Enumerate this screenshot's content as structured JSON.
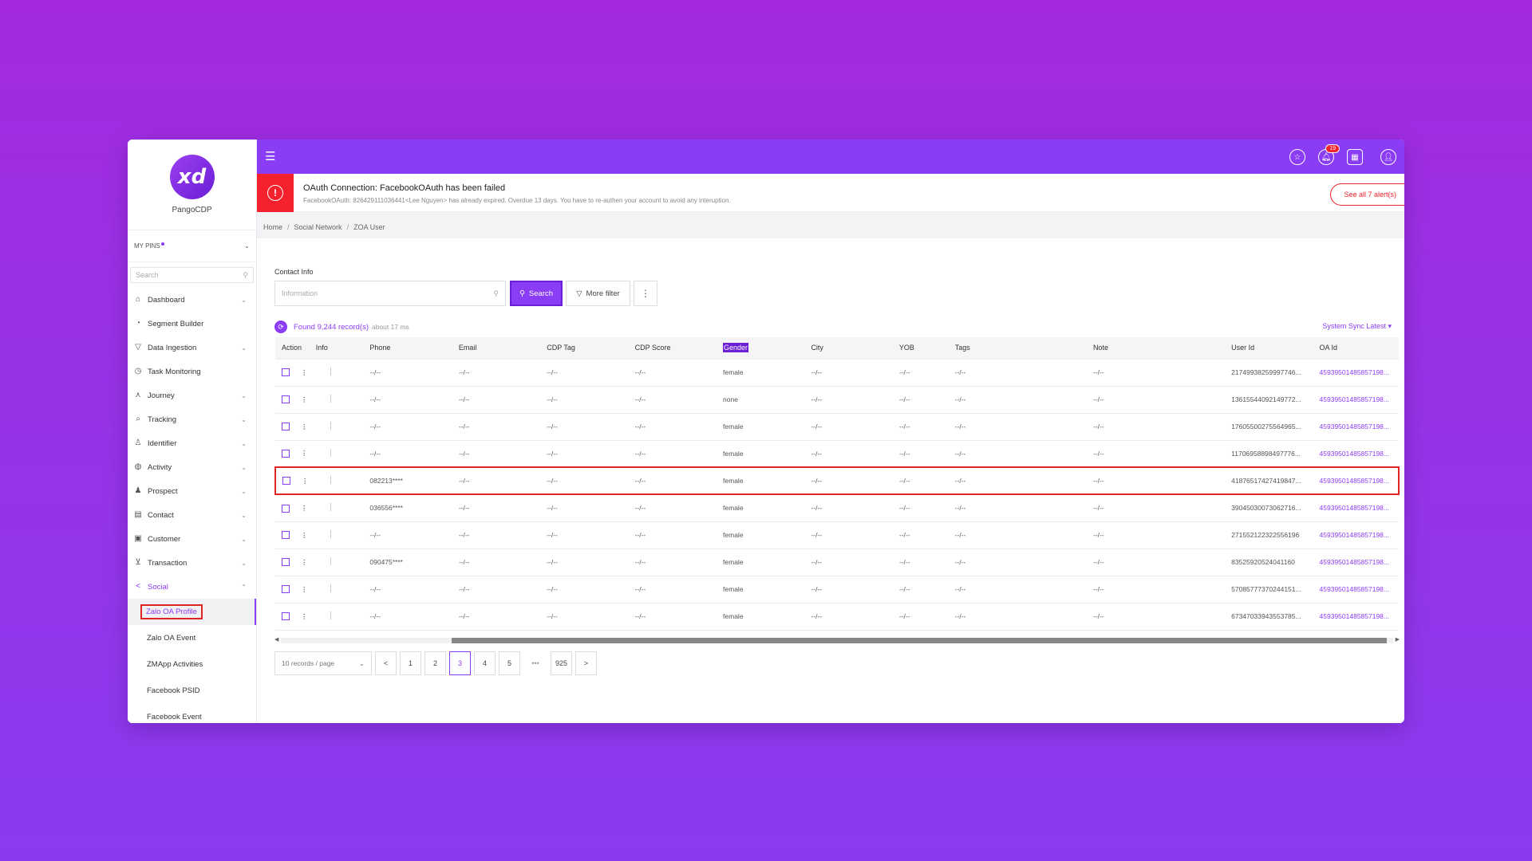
{
  "app": {
    "name": "PangoCDP"
  },
  "sidebar": {
    "pins_label": "MY PINS",
    "search_placeholder": "Search",
    "items": [
      {
        "label": "Dashboard",
        "icon": "home-icon",
        "chevron": "down"
      },
      {
        "label": "Segment Builder",
        "icon": "pie-chart-icon",
        "chevron": ""
      },
      {
        "label": "Data Ingestion",
        "icon": "filter-icon",
        "chevron": "down"
      },
      {
        "label": "Task Monitoring",
        "icon": "clock-icon",
        "chevron": ""
      },
      {
        "label": "Journey",
        "icon": "journey-icon",
        "chevron": "down"
      },
      {
        "label": "Tracking",
        "icon": "tracking-icon",
        "chevron": "down"
      },
      {
        "label": "Identifier",
        "icon": "user-icon",
        "chevron": "down"
      },
      {
        "label": "Activity",
        "icon": "globe-icon",
        "chevron": "down"
      },
      {
        "label": "Prospect",
        "icon": "users-icon",
        "chevron": "down"
      },
      {
        "label": "Contact",
        "icon": "contact-card-icon",
        "chevron": "down"
      },
      {
        "label": "Customer",
        "icon": "customer-icon",
        "chevron": "down"
      },
      {
        "label": "Transaction",
        "icon": "cart-icon",
        "chevron": "down"
      },
      {
        "label": "Social",
        "icon": "share-icon",
        "chevron": "up"
      }
    ],
    "sub_items": [
      {
        "label": "Zalo OA Profile"
      },
      {
        "label": "Zalo OA Event"
      },
      {
        "label": "ZMApp Activities"
      },
      {
        "label": "Facebook PSID"
      },
      {
        "label": "Facebook Event"
      }
    ]
  },
  "topbar": {
    "notification_count": "19"
  },
  "alert": {
    "title": "OAuth Connection: FacebookOAuth has been failed",
    "description": "FacebookOAuth: 826429111036441<Lee Nguyen> has already expired. Overdue 13 days. You have to re-authen your account to avoid any interuption.",
    "button": "See all 7 alert(s)"
  },
  "breadcrumb": [
    "Home",
    "Social Network",
    "ZOA User"
  ],
  "filter": {
    "label": "Contact Info",
    "placeholder": "Information",
    "search_label": "Search",
    "more_filter_label": "More filter"
  },
  "results": {
    "found": "Found 9,244 record(s)",
    "time": "about 17 ms",
    "sync": "System Sync Latest"
  },
  "table": {
    "columns": [
      "Action",
      "Info",
      "Phone",
      "Email",
      "CDP Tag",
      "CDP Score",
      "Gender",
      "City",
      "YOB",
      "Tags",
      "Note",
      "User Id",
      "OA Id"
    ],
    "rows": [
      {
        "phone": "--/--",
        "email": "--/--",
        "cdp_tag": "--/--",
        "cdp_score": "--/--",
        "gender": "female",
        "city": "--/--",
        "yob": "--/--",
        "tags": "--/--",
        "note": "--/--",
        "user_id": "21749938259997746...",
        "oa_id": "45939501485857198..."
      },
      {
        "phone": "--/--",
        "email": "--/--",
        "cdp_tag": "--/--",
        "cdp_score": "--/--",
        "gender": "none",
        "city": "--/--",
        "yob": "--/--",
        "tags": "--/--",
        "note": "--/--",
        "user_id": "13615544092149772...",
        "oa_id": "45939501485857198..."
      },
      {
        "phone": "--/--",
        "email": "--/--",
        "cdp_tag": "--/--",
        "cdp_score": "--/--",
        "gender": "female",
        "city": "--/--",
        "yob": "--/--",
        "tags": "--/--",
        "note": "--/--",
        "user_id": "17605500275564965...",
        "oa_id": "45939501485857198..."
      },
      {
        "phone": "--/--",
        "email": "--/--",
        "cdp_tag": "--/--",
        "cdp_score": "--/--",
        "gender": "female",
        "city": "--/--",
        "yob": "--/--",
        "tags": "--/--",
        "note": "--/--",
        "user_id": "11706958898497776...",
        "oa_id": "45939501485857198..."
      },
      {
        "phone": "082213****",
        "email": "--/--",
        "cdp_tag": "--/--",
        "cdp_score": "--/--",
        "gender": "female",
        "city": "--/--",
        "yob": "--/--",
        "tags": "--/--",
        "note": "--/--",
        "user_id": "41876517427419847...",
        "oa_id": "45939501485857198..."
      },
      {
        "phone": "036556****",
        "email": "--/--",
        "cdp_tag": "--/--",
        "cdp_score": "--/--",
        "gender": "female",
        "city": "--/--",
        "yob": "--/--",
        "tags": "--/--",
        "note": "--/--",
        "user_id": "39045030073062716...",
        "oa_id": "45939501485857198..."
      },
      {
        "phone": "--/--",
        "email": "--/--",
        "cdp_tag": "--/--",
        "cdp_score": "--/--",
        "gender": "female",
        "city": "--/--",
        "yob": "--/--",
        "tags": "--/--",
        "note": "--/--",
        "user_id": "271552122322556196",
        "oa_id": "45939501485857198..."
      },
      {
        "phone": "090475****",
        "email": "--/--",
        "cdp_tag": "--/--",
        "cdp_score": "--/--",
        "gender": "female",
        "city": "--/--",
        "yob": "--/--",
        "tags": "--/--",
        "note": "--/--",
        "user_id": "83525920524041160",
        "oa_id": "45939501485857198..."
      },
      {
        "phone": "--/--",
        "email": "--/--",
        "cdp_tag": "--/--",
        "cdp_score": "--/--",
        "gender": "female",
        "city": "--/--",
        "yob": "--/--",
        "tags": "--/--",
        "note": "--/--",
        "user_id": "57085777370244151...",
        "oa_id": "45939501485857198..."
      },
      {
        "phone": "--/--",
        "email": "--/--",
        "cdp_tag": "--/--",
        "cdp_score": "--/--",
        "gender": "female",
        "city": "--/--",
        "yob": "--/--",
        "tags": "--/--",
        "note": "--/--",
        "user_id": "67347033943553785...",
        "oa_id": "45939501485857198..."
      }
    ]
  },
  "pagination": {
    "page_size": "10 records / page",
    "pages": [
      "1",
      "2",
      "3",
      "4",
      "5"
    ],
    "current": "3",
    "ellipsis": "•••",
    "last": "925",
    "prev": "<",
    "next": ">"
  },
  "colors": {
    "accent": "#8b3cf5",
    "alert": "#f5222d",
    "highlight": "#e02424"
  }
}
